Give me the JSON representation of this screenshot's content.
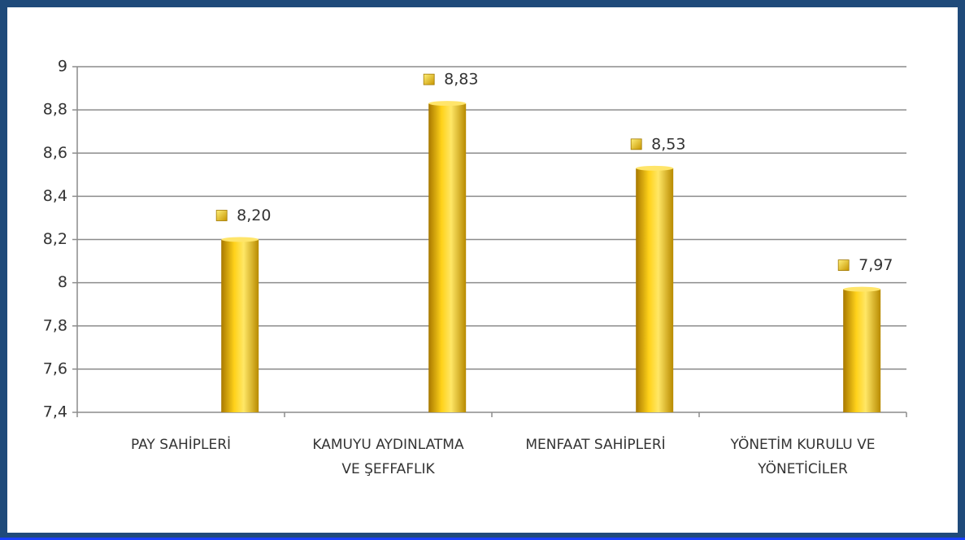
{
  "chart_data": {
    "type": "bar",
    "categories": [
      "PAY SAHİPLERİ",
      "KAMUYU AYDINLATMA VE ŞEFFAFLIK",
      "MENFAAT SAHİPLERİ",
      "YÖNETİM KURULU VE YÖNETİCİLER"
    ],
    "values": [
      8.2,
      8.83,
      8.53,
      7.97
    ],
    "value_labels": [
      "8,20",
      "8,83",
      "8,53",
      "7,97"
    ],
    "color": "#f5c400",
    "ylim": [
      7.4,
      9
    ],
    "yticks": [
      {
        "value": 7.4,
        "label": "7,4"
      },
      {
        "value": 7.6,
        "label": "7,6"
      },
      {
        "value": 7.8,
        "label": "7,8"
      },
      8,
      {
        "value": 8.2,
        "label": "8,2"
      },
      {
        "value": 8.4,
        "label": "8,4"
      },
      {
        "value": 8.6,
        "label": "8,6"
      },
      {
        "value": 8.8,
        "label": "8,8"
      },
      9
    ],
    "grid": true
  }
}
